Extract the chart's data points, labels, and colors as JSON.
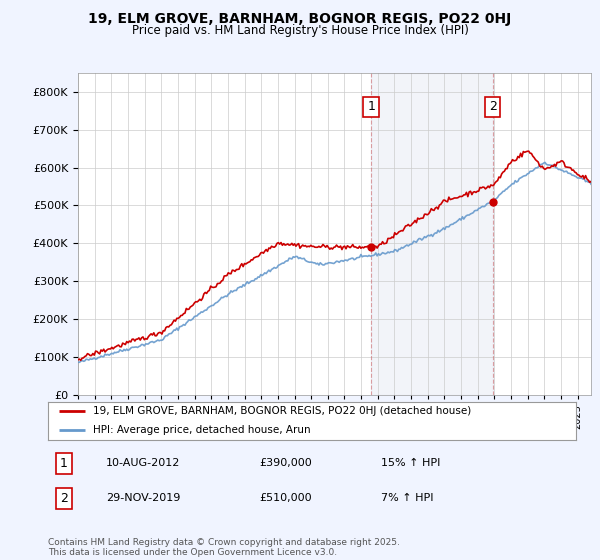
{
  "title": "19, ELM GROVE, BARNHAM, BOGNOR REGIS, PO22 0HJ",
  "subtitle": "Price paid vs. HM Land Registry's House Price Index (HPI)",
  "legend_line1": "19, ELM GROVE, BARNHAM, BOGNOR REGIS, PO22 0HJ (detached house)",
  "legend_line2": "HPI: Average price, detached house, Arun",
  "annotation1_label": "1",
  "annotation1_date": "10-AUG-2012",
  "annotation1_price": "£390,000",
  "annotation1_hpi": "15% ↑ HPI",
  "annotation2_label": "2",
  "annotation2_date": "29-NOV-2019",
  "annotation2_price": "£510,000",
  "annotation2_hpi": "7% ↑ HPI",
  "footer": "Contains HM Land Registry data © Crown copyright and database right 2025.\nThis data is licensed under the Open Government Licence v3.0.",
  "red_color": "#cc0000",
  "blue_color": "#6699cc",
  "background_color": "#f0f4ff",
  "plot_bg": "#ffffff",
  "ylim": [
    0,
    850000
  ],
  "yticks": [
    0,
    100000,
    200000,
    300000,
    400000,
    500000,
    600000,
    700000,
    800000
  ],
  "sale1_year": 2012.6,
  "sale1_price": 390000,
  "sale2_year": 2019.9,
  "sale2_price": 510000
}
